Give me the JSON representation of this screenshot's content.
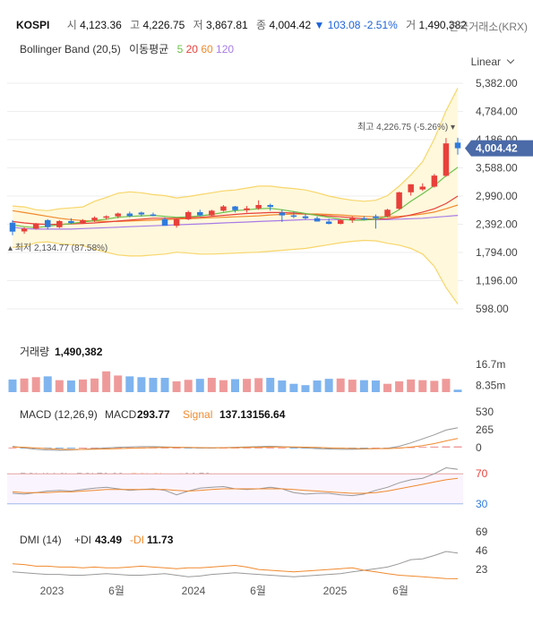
{
  "header": {
    "symbol": "KOSPI",
    "open_label": "시",
    "open": "4,123.36",
    "high_label": "고",
    "high": "4,226.75",
    "low_label": "저",
    "low": "3,867.81",
    "close_label": "종",
    "close": "4,004.42",
    "change_arrow": "▼",
    "change": "103.08",
    "change_pct": "-2.51%",
    "volume_label": "거",
    "volume": "1,490,382",
    "exchange": "한국거래소(KRX)"
  },
  "indicators_line": {
    "bb": "Bollinger Band (20,5)",
    "ma_label": "이동평균",
    "ma5": "5",
    "ma20": "20",
    "ma60": "60",
    "ma120": "120"
  },
  "colors": {
    "up": "#e8403a",
    "down": "#2f7bdc",
    "vol_up": "#ef9a9a",
    "vol_down": "#7fb4ee",
    "bb_fill": "#fff8dc",
    "bb_line": "#f7d66b",
    "ma5": "#6cc04a",
    "ma20": "#e8403a",
    "ma60": "#f08a2e",
    "ma120": "#a77be6",
    "price_tag": "#4a6aa8"
  },
  "scale_mode": "Linear",
  "chart_data": [
    {
      "type": "candlestick",
      "title": "KOSPI",
      "y_ticks": [
        "5,382.00",
        "4,784.00",
        "4,186.00",
        "3,588.00",
        "2,990.00",
        "2,392.00",
        "1,794.00",
        "1,196.00",
        "598.00"
      ],
      "ylim": [
        598,
        5382
      ],
      "x_ticks": [
        "2023",
        "6월",
        "2024",
        "6월",
        "2025",
        "6월"
      ],
      "current_price": "4,004.42",
      "annotations": {
        "max_label": "최고",
        "max": "4,226.75 (-5.26%)",
        "min_label": "최저",
        "min": "2,134.77 (87.58%)"
      },
      "candles": [
        {
          "o": 2425,
          "h": 2480,
          "l": 2160,
          "c": 2236
        },
        {
          "o": 2240,
          "h": 2330,
          "l": 2190,
          "c": 2300
        },
        {
          "o": 2300,
          "h": 2420,
          "l": 2280,
          "c": 2412
        },
        {
          "o": 2480,
          "h": 2500,
          "l": 2280,
          "c": 2330
        },
        {
          "o": 2330,
          "h": 2480,
          "l": 2310,
          "c": 2460
        },
        {
          "o": 2460,
          "h": 2520,
          "l": 2400,
          "c": 2418
        },
        {
          "o": 2418,
          "h": 2500,
          "l": 2400,
          "c": 2478
        },
        {
          "o": 2478,
          "h": 2560,
          "l": 2440,
          "c": 2530
        },
        {
          "o": 2530,
          "h": 2580,
          "l": 2490,
          "c": 2560
        },
        {
          "o": 2560,
          "h": 2640,
          "l": 2520,
          "c": 2620
        },
        {
          "o": 2620,
          "h": 2660,
          "l": 2540,
          "c": 2565
        },
        {
          "o": 2640,
          "h": 2660,
          "l": 2560,
          "c": 2600
        },
        {
          "o": 2600,
          "h": 2640,
          "l": 2560,
          "c": 2570
        },
        {
          "o": 2500,
          "h": 2540,
          "l": 2380,
          "c": 2360
        },
        {
          "o": 2360,
          "h": 2520,
          "l": 2320,
          "c": 2500
        },
        {
          "o": 2500,
          "h": 2680,
          "l": 2480,
          "c": 2650
        },
        {
          "o": 2650,
          "h": 2700,
          "l": 2560,
          "c": 2580
        },
        {
          "o": 2580,
          "h": 2700,
          "l": 2560,
          "c": 2680
        },
        {
          "o": 2680,
          "h": 2800,
          "l": 2660,
          "c": 2770
        },
        {
          "o": 2770,
          "h": 2780,
          "l": 2640,
          "c": 2690
        },
        {
          "o": 2690,
          "h": 2780,
          "l": 2640,
          "c": 2730
        },
        {
          "o": 2730,
          "h": 2900,
          "l": 2700,
          "c": 2800
        },
        {
          "o": 2800,
          "h": 2830,
          "l": 2680,
          "c": 2760
        },
        {
          "o": 2640,
          "h": 2700,
          "l": 2440,
          "c": 2580
        },
        {
          "o": 2580,
          "h": 2660,
          "l": 2520,
          "c": 2560
        },
        {
          "o": 2560,
          "h": 2600,
          "l": 2490,
          "c": 2520
        },
        {
          "o": 2520,
          "h": 2560,
          "l": 2480,
          "c": 2450
        },
        {
          "o": 2450,
          "h": 2510,
          "l": 2390,
          "c": 2400
        },
        {
          "o": 2400,
          "h": 2500,
          "l": 2390,
          "c": 2480
        },
        {
          "o": 2480,
          "h": 2560,
          "l": 2420,
          "c": 2520
        },
        {
          "o": 2520,
          "h": 2560,
          "l": 2480,
          "c": 2500
        },
        {
          "o": 2560,
          "h": 2600,
          "l": 2300,
          "c": 2520
        },
        {
          "o": 2560,
          "h": 2720,
          "l": 2540,
          "c": 2700
        },
        {
          "o": 2720,
          "h": 3080,
          "l": 2700,
          "c": 3070
        },
        {
          "o": 3070,
          "h": 3240,
          "l": 3000,
          "c": 3240
        },
        {
          "o": 3130,
          "h": 3260,
          "l": 3100,
          "c": 3190
        },
        {
          "o": 3190,
          "h": 3460,
          "l": 3170,
          "c": 3424
        },
        {
          "o": 3420,
          "h": 4221,
          "l": 3400,
          "c": 4107
        },
        {
          "o": 4123,
          "h": 4227,
          "l": 3868,
          "c": 4004
        }
      ],
      "bb_upper": [
        2780,
        2760,
        2700,
        2680,
        2720,
        2740,
        2760,
        2880,
        2960,
        3050,
        3080,
        3060,
        3020,
        3000,
        2950,
        2980,
        3020,
        3060,
        3100,
        3120,
        3160,
        3200,
        3200,
        3170,
        3150,
        3120,
        3060,
        2990,
        2940,
        2900,
        2880,
        2900,
        3000,
        3200,
        3440,
        3720,
        4200,
        4800,
        5280
      ],
      "bb_lower": [
        1900,
        1920,
        2000,
        2020,
        1980,
        1960,
        1940,
        1860,
        1800,
        1740,
        1720,
        1720,
        1740,
        1760,
        1800,
        1780,
        1760,
        1760,
        1770,
        1780,
        1790,
        1800,
        1820,
        1840,
        1860,
        1880,
        1920,
        1960,
        2000,
        2030,
        2050,
        2040,
        1990,
        1950,
        1880,
        1760,
        1500,
        1050,
        700
      ],
      "ma5": [
        2380,
        2340,
        2320,
        2350,
        2380,
        2410,
        2440,
        2470,
        2500,
        2540,
        2560,
        2570,
        2580,
        2560,
        2540,
        2550,
        2570,
        2600,
        2640,
        2680,
        2700,
        2720,
        2730,
        2700,
        2660,
        2620,
        2580,
        2540,
        2500,
        2480,
        2480,
        2500,
        2560,
        2700,
        2880,
        3040,
        3210,
        3420,
        3600
      ],
      "ma20": [
        2450,
        2420,
        2400,
        2390,
        2390,
        2400,
        2410,
        2420,
        2440,
        2460,
        2480,
        2500,
        2520,
        2520,
        2520,
        2530,
        2540,
        2560,
        2580,
        2600,
        2620,
        2630,
        2640,
        2640,
        2630,
        2610,
        2590,
        2570,
        2550,
        2530,
        2510,
        2500,
        2510,
        2540,
        2590,
        2650,
        2720,
        2830,
        2990
      ],
      "ma60": [
        2680,
        2640,
        2600,
        2560,
        2520,
        2490,
        2470,
        2460,
        2450,
        2450,
        2460,
        2470,
        2480,
        2490,
        2500,
        2510,
        2520,
        2530,
        2540,
        2550,
        2560,
        2570,
        2590,
        2600,
        2610,
        2610,
        2610,
        2600,
        2590,
        2570,
        2560,
        2550,
        2550,
        2560,
        2580,
        2610,
        2650,
        2720,
        2800
      ],
      "ma120": [
        2330,
        2300,
        2290,
        2290,
        2290,
        2290,
        2300,
        2310,
        2320,
        2330,
        2340,
        2350,
        2360,
        2370,
        2380,
        2390,
        2400,
        2410,
        2420,
        2430,
        2440,
        2450,
        2460,
        2470,
        2480,
        2490,
        2490,
        2490,
        2490,
        2490,
        2490,
        2490,
        2490,
        2500,
        2510,
        2520,
        2540,
        2560,
        2580
      ]
    },
    {
      "type": "bar",
      "title": "거래량",
      "value": "1,490,382",
      "y_ticks": [
        "16.7m",
        "8.35m"
      ],
      "volumes": [
        7.6,
        8.2,
        9.0,
        9.5,
        7.2,
        7.0,
        7.6,
        8.2,
        12.5,
        10.0,
        9.5,
        9.0,
        8.6,
        8.6,
        6.5,
        7.4,
        8.0,
        8.6,
        7.2,
        7.8,
        8.0,
        8.4,
        8.6,
        7.0,
        5.0,
        4.2,
        7.0,
        8.0,
        8.2,
        7.5,
        7.2,
        7.0,
        5.0,
        6.5,
        7.6,
        7.2,
        6.8,
        8.0,
        1.49
      ]
    },
    {
      "type": "line",
      "title": "MACD (12,26,9)",
      "legend": {
        "macd_label": "MACD",
        "macd": "293.77",
        "signal_label": "Signal",
        "signal": "137.13156.64"
      },
      "y_ticks": [
        "530",
        "265",
        "0"
      ],
      "macd": [
        20,
        -5,
        -25,
        -35,
        -40,
        -35,
        -25,
        -15,
        -5,
        5,
        10,
        15,
        15,
        10,
        5,
        0,
        -5,
        -5,
        0,
        5,
        10,
        15,
        20,
        15,
        5,
        -5,
        -15,
        -20,
        -25,
        -25,
        -20,
        -15,
        -10,
        20,
        70,
        130,
        190,
        260,
        294
      ],
      "signal": [
        10,
        5,
        -5,
        -15,
        -22,
        -26,
        -26,
        -24,
        -20,
        -15,
        -10,
        -5,
        0,
        2,
        3,
        2,
        0,
        -1,
        -1,
        0,
        2,
        5,
        8,
        10,
        9,
        6,
        2,
        -3,
        -8,
        -12,
        -14,
        -15,
        -14,
        -7,
        8,
        30,
        60,
        100,
        137
      ]
    },
    {
      "type": "line",
      "title": "RSI (14,9)",
      "legend": {
        "rsi_label": "RSI",
        "rsi": "76.23",
        "sig_label": "RSI-Signal",
        "sig": "64.53"
      },
      "y_ticks": [
        "70",
        "30"
      ],
      "rsi": [
        44,
        43,
        45,
        47,
        48,
        47,
        49,
        51,
        52,
        50,
        48,
        49,
        50,
        48,
        42,
        47,
        51,
        52,
        53,
        50,
        49,
        50,
        52,
        50,
        45,
        43,
        44,
        44,
        42,
        41,
        43,
        48,
        52,
        58,
        62,
        64,
        70,
        78,
        76
      ],
      "signal": [
        46,
        45,
        45,
        45,
        46,
        46,
        47,
        48,
        49,
        49,
        49,
        49,
        49,
        49,
        48,
        47,
        48,
        49,
        50,
        50,
        50,
        50,
        50,
        50,
        49,
        48,
        47,
        46,
        45,
        44,
        44,
        45,
        47,
        50,
        53,
        56,
        59,
        62,
        64
      ]
    },
    {
      "type": "line",
      "title": "DMI (14)",
      "legend": {
        "pdi_label": "+DI",
        "pdi": "43.49",
        "mdi_label": "-DI",
        "mdi": "11.73"
      },
      "y_ticks": [
        "69",
        "46",
        "23"
      ],
      "plus_di": [
        20,
        19,
        18,
        17,
        17,
        16,
        16,
        17,
        18,
        17,
        16,
        16,
        17,
        18,
        16,
        14,
        15,
        17,
        18,
        19,
        18,
        17,
        16,
        15,
        14,
        15,
        16,
        17,
        18,
        20,
        22,
        24,
        26,
        30,
        35,
        36,
        40,
        45,
        43
      ],
      "minus_di": [
        30,
        29,
        27,
        27,
        26,
        26,
        25,
        26,
        25,
        25,
        26,
        27,
        26,
        25,
        24,
        25,
        25,
        26,
        27,
        28,
        26,
        23,
        22,
        21,
        20,
        21,
        22,
        23,
        24,
        25,
        22,
        20,
        18,
        16,
        15,
        14,
        13,
        12,
        11.7
      ]
    }
  ]
}
